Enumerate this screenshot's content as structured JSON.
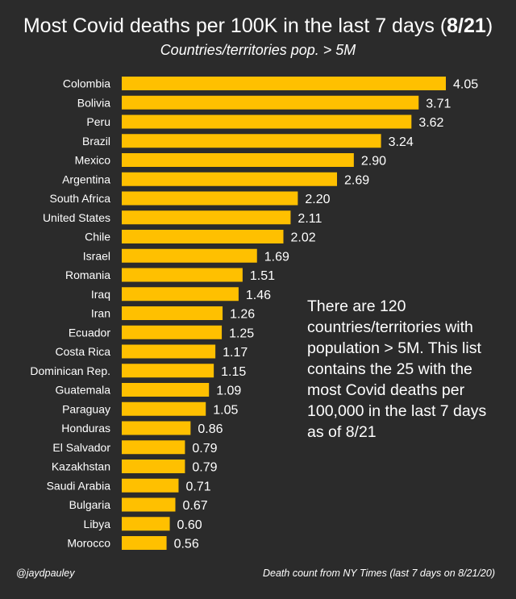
{
  "header": {
    "title_main": "Most Covid deaths per 100K in the last 7 days (",
    "title_date": "8/21",
    "title_end": ")",
    "subtitle": "Countries/territories pop. > 5M"
  },
  "note": "There are 120 countries/territories with population > 5M. This list contains the 25 with the most Covid deaths per 100,000 in the last 7 days  as of 8/21",
  "footer": {
    "credit": "@jaydpauley",
    "source": "Death count from NY Times (last 7 days on 8/21/20)"
  },
  "colors": {
    "background": "#2b2b2b",
    "bar": "#ffc000",
    "text": "#ffffff"
  },
  "chart_data": {
    "type": "bar",
    "orientation": "horizontal",
    "title": "Most Covid deaths per 100K in the last 7 days (8/21)",
    "subtitle": "Countries/territories pop. > 5M",
    "xlabel": "",
    "ylabel": "",
    "xlim": [
      0,
      4.05
    ],
    "grid": false,
    "categories": [
      "Colombia",
      "Bolivia",
      "Peru",
      "Brazil",
      "Mexico",
      "Argentina",
      "South Africa",
      "United States",
      "Chile",
      "Israel",
      "Romania",
      "Iraq",
      "Iran",
      "Ecuador",
      "Costa Rica",
      "Dominican Rep.",
      "Guatemala",
      "Paraguay",
      "Honduras",
      "El Salvador",
      "Kazakhstan",
      "Saudi Arabia",
      "Bulgaria",
      "Libya",
      "Morocco"
    ],
    "values": [
      4.05,
      3.71,
      3.62,
      3.24,
      2.9,
      2.69,
      2.2,
      2.11,
      2.02,
      1.69,
      1.51,
      1.46,
      1.26,
      1.25,
      1.17,
      1.15,
      1.09,
      1.05,
      0.86,
      0.79,
      0.79,
      0.71,
      0.67,
      0.6,
      0.56
    ],
    "labels": [
      "4.05",
      "3.71",
      "3.62",
      "3.24",
      "2.90",
      "2.69",
      "2.20",
      "2.11",
      "2.02",
      "1.69",
      "1.51",
      "1.46",
      "1.26",
      "1.25",
      "1.17",
      "1.15",
      "1.09",
      "1.05",
      "0.86",
      "0.79",
      "0.79",
      "0.71",
      "0.67",
      "0.60",
      "0.56"
    ]
  }
}
